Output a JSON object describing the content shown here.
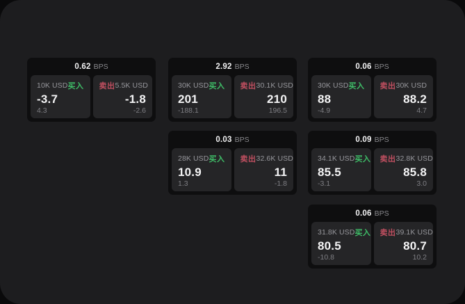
{
  "labels": {
    "buy": "买入",
    "sell": "卖出",
    "unit": "BPS"
  },
  "colors": {
    "buy_green": "#3fbe68",
    "sell_red": "#c04f60",
    "window_bg": "#1d1d1f",
    "card_bg": "#0e0e0f",
    "panel_bg": "#252527",
    "text_primary": "#f4f4f5",
    "text_muted": "#8a8a8e"
  },
  "cards": [
    {
      "bps": "0.62",
      "grid": {
        "row": 1,
        "col": 1
      },
      "buy": {
        "amount": "10K USD",
        "value": "-3.7",
        "sub": "4.3"
      },
      "sell": {
        "amount": "5.5K USD",
        "value": "-1.8",
        "sub": "-2.6"
      }
    },
    {
      "bps": "2.92",
      "grid": {
        "row": 1,
        "col": 2
      },
      "buy": {
        "amount": "30K USD",
        "value": "201",
        "sub": "-188.1"
      },
      "sell": {
        "amount": "30.1K USD",
        "value": "210",
        "sub": "196.5"
      }
    },
    {
      "bps": "0.06",
      "grid": {
        "row": 1,
        "col": 3
      },
      "buy": {
        "amount": "30K USD",
        "value": "88",
        "sub": "-4.9"
      },
      "sell": {
        "amount": "30K USD",
        "value": "88.2",
        "sub": "4.7"
      }
    },
    {
      "bps": "0.03",
      "grid": {
        "row": 2,
        "col": 2
      },
      "buy": {
        "amount": "28K USD",
        "value": "10.9",
        "sub": "1.3"
      },
      "sell": {
        "amount": "32.6K USD",
        "value": "11",
        "sub": "-1.8"
      }
    },
    {
      "bps": "0.09",
      "grid": {
        "row": 2,
        "col": 3
      },
      "buy": {
        "amount": "34.1K USD",
        "value": "85.5",
        "sub": "-3.1"
      },
      "sell": {
        "amount": "32.8K USD",
        "value": "85.8",
        "sub": "3.0"
      }
    },
    {
      "bps": "0.06",
      "grid": {
        "row": 3,
        "col": 3
      },
      "buy": {
        "amount": "31.8K USD",
        "value": "80.5",
        "sub": "-10.8"
      },
      "sell": {
        "amount": "39.1K USD",
        "value": "80.7",
        "sub": "10.2"
      }
    }
  ]
}
